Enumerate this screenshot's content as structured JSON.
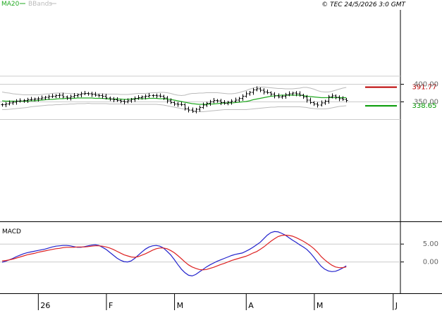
{
  "header": {
    "legend_ma": "MA20",
    "legend_bb": "BBands",
    "copyright": "© TEC 24/5/2026 3:0 GMT"
  },
  "colors": {
    "ma": "#22aa22",
    "bb": "#bbbbbb",
    "bar": "#000000",
    "grid": "#cccccc",
    "macd": "#2222cc",
    "signal": "#dd2222",
    "resistance": "#bb0000",
    "support": "#009900"
  },
  "chart_data": [
    {
      "type": "ohlc",
      "panel": "price",
      "y_range": [
        290,
        420
      ],
      "y_ticks": [
        {
          "value": 400,
          "label": "400.00"
        },
        {
          "value": 350,
          "label": "350.00"
        }
      ],
      "x_ticks": [
        {
          "index": 10,
          "label": "26"
        },
        {
          "index": 29,
          "label": "F"
        },
        {
          "index": 48,
          "label": "M"
        },
        {
          "index": 68,
          "label": "A"
        },
        {
          "index": 87,
          "label": "M"
        },
        {
          "index": 109,
          "label": "J"
        }
      ],
      "levels": [
        {
          "name": "resistance",
          "value": 391.77,
          "label": "391.77"
        },
        {
          "name": "support",
          "value": 338.65,
          "label": "338.65"
        }
      ],
      "close": [
        342,
        344,
        347,
        349,
        352,
        353,
        354,
        356,
        357,
        358,
        359,
        361,
        363,
        365,
        366,
        368,
        369,
        364,
        361,
        365,
        368,
        370,
        373,
        374,
        373,
        371,
        369,
        368,
        366,
        361,
        358,
        356,
        354,
        352,
        350,
        353,
        357,
        360,
        362,
        364,
        366,
        368,
        368,
        367,
        366,
        361,
        353,
        348,
        344,
        343,
        342,
        331,
        327,
        323,
        329,
        334,
        341,
        346,
        350,
        354,
        353,
        348,
        346,
        349,
        352,
        355,
        360,
        366,
        373,
        377,
        384,
        387,
        383,
        378,
        376,
        372,
        367,
        364,
        366,
        370,
        373,
        375,
        373,
        369,
        364,
        355,
        348,
        344,
        341,
        347,
        352,
        364,
        367,
        363,
        359,
        357,
        354
      ],
      "ma20": [
        353,
        352,
        352,
        352,
        352,
        352,
        352,
        352,
        353,
        353,
        354,
        355,
        356,
        357,
        357,
        358,
        359,
        359,
        360,
        360,
        360,
        361,
        361,
        361,
        361,
        361,
        360,
        360,
        360,
        359,
        358,
        358,
        358,
        358,
        357,
        357,
        358,
        359,
        359,
        359,
        359,
        360,
        360,
        360,
        359,
        359,
        358,
        357,
        355,
        353,
        351,
        349,
        347,
        345,
        344,
        343,
        343,
        343,
        344,
        344,
        345,
        346,
        347,
        347,
        347,
        348,
        349,
        350,
        351,
        353,
        356,
        358,
        360,
        362,
        364,
        366,
        367,
        368,
        369,
        369,
        369,
        369,
        369,
        369,
        368,
        366,
        365,
        364,
        363,
        362,
        362,
        362,
        362,
        362,
        362,
        362,
        362
      ],
      "bb_upper": [
        378,
        376,
        375,
        373,
        372,
        371,
        370,
        370,
        370,
        370,
        370,
        371,
        372,
        373,
        374,
        375,
        375,
        375,
        374,
        374,
        373,
        373,
        373,
        373,
        373,
        373,
        373,
        373,
        373,
        372,
        372,
        372,
        372,
        371,
        371,
        371,
        372,
        373,
        374,
        374,
        374,
        375,
        376,
        376,
        377,
        377,
        376,
        374,
        371,
        369,
        368,
        369,
        372,
        374,
        374,
        375,
        375,
        376,
        376,
        376,
        376,
        375,
        374,
        373,
        373,
        374,
        376,
        379,
        382,
        386,
        389,
        391,
        392,
        392,
        391,
        390,
        389,
        388,
        388,
        387,
        387,
        387,
        388,
        389,
        391,
        391,
        389,
        386,
        382,
        379,
        378,
        378,
        380,
        383,
        386,
        389,
        391
      ],
      "bb_lower": [
        328,
        328,
        329,
        330,
        331,
        332,
        333,
        334,
        336,
        337,
        338,
        339,
        340,
        341,
        341,
        342,
        342,
        343,
        343,
        344,
        344,
        345,
        345,
        345,
        346,
        345,
        345,
        345,
        345,
        345,
        344,
        344,
        344,
        344,
        343,
        343,
        343,
        343,
        343,
        343,
        343,
        343,
        343,
        343,
        342,
        341,
        339,
        337,
        335,
        333,
        331,
        329,
        327,
        325,
        323,
        322,
        322,
        323,
        324,
        325,
        326,
        327,
        328,
        328,
        328,
        328,
        328,
        328,
        328,
        329,
        330,
        331,
        332,
        333,
        334,
        335,
        335,
        336,
        336,
        336,
        336,
        336,
        336,
        336,
        335,
        334,
        332,
        331,
        330,
        330,
        330,
        331,
        333,
        335,
        337,
        338,
        339
      ]
    },
    {
      "type": "line",
      "panel": "macd",
      "title": "MACD",
      "y_range": [
        -4.5,
        10
      ],
      "y_ticks": [
        {
          "value": 5,
          "label": "5.00"
        },
        {
          "value": 0,
          "label": "0.00"
        }
      ],
      "series": [
        {
          "name": "macd",
          "values": [
            -0.1,
            0.2,
            0.6,
            1,
            1.5,
            1.9,
            2.3,
            2.6,
            2.8,
            3,
            3.2,
            3.4,
            3.6,
            3.9,
            4.2,
            4.4,
            4.5,
            4.6,
            4.6,
            4.5,
            4.3,
            4.1,
            4.1,
            4.3,
            4.5,
            4.7,
            4.8,
            4.6,
            4.1,
            3.5,
            2.7,
            1.9,
            1.1,
            0.5,
            0.1,
            0,
            0.3,
            1,
            1.9,
            2.8,
            3.6,
            4.2,
            4.5,
            4.6,
            4.4,
            3.9,
            3,
            2,
            0.7,
            -0.7,
            -2,
            -3,
            -3.7,
            -3.9,
            -3.5,
            -2.8,
            -2.1,
            -1.4,
            -0.8,
            -0.3,
            0.2,
            0.6,
            1,
            1.4,
            1.8,
            2.1,
            2.3,
            2.5,
            3,
            3.5,
            4.1,
            4.8,
            5.5,
            6.5,
            7.5,
            8.2,
            8.5,
            8.4,
            8,
            7.5,
            6.8,
            6.1,
            5.5,
            4.8,
            4.2,
            3.5,
            2.5,
            1.3,
            0,
            -1.2,
            -2,
            -2.5,
            -2.7,
            -2.6,
            -2.2,
            -1.7,
            -1.1
          ]
        },
        {
          "name": "signal",
          "values": [
            0.3,
            0.4,
            0.6,
            0.8,
            1.1,
            1.4,
            1.7,
            2,
            2.2,
            2.4,
            2.7,
            2.9,
            3.1,
            3.3,
            3.5,
            3.7,
            3.8,
            4,
            4.1,
            4.1,
            4.1,
            4.2,
            4.2,
            4.2,
            4.3,
            4.4,
            4.5,
            4.5,
            4.4,
            4.2,
            3.9,
            3.5,
            3,
            2.5,
            2,
            1.7,
            1.4,
            1.3,
            1.5,
            1.9,
            2.3,
            2.8,
            3.3,
            3.7,
            3.9,
            3.9,
            3.7,
            3.2,
            2.6,
            1.8,
            0.9,
            0,
            -0.8,
            -1.4,
            -1.8,
            -2.1,
            -2.2,
            -2.1,
            -1.8,
            -1.5,
            -1.1,
            -0.7,
            -0.4,
            0,
            0.4,
            0.7,
            1,
            1.3,
            1.6,
            2,
            2.5,
            2.9,
            3.5,
            4.2,
            5,
            5.8,
            6.5,
            7.1,
            7.4,
            7.5,
            7.4,
            7.2,
            6.8,
            6.3,
            5.8,
            5.2,
            4.5,
            3.7,
            2.7,
            1.5,
            0.6,
            -0.2,
            -0.9,
            -1.4,
            -1.6,
            -1.6,
            -1.4
          ]
        }
      ]
    }
  ]
}
